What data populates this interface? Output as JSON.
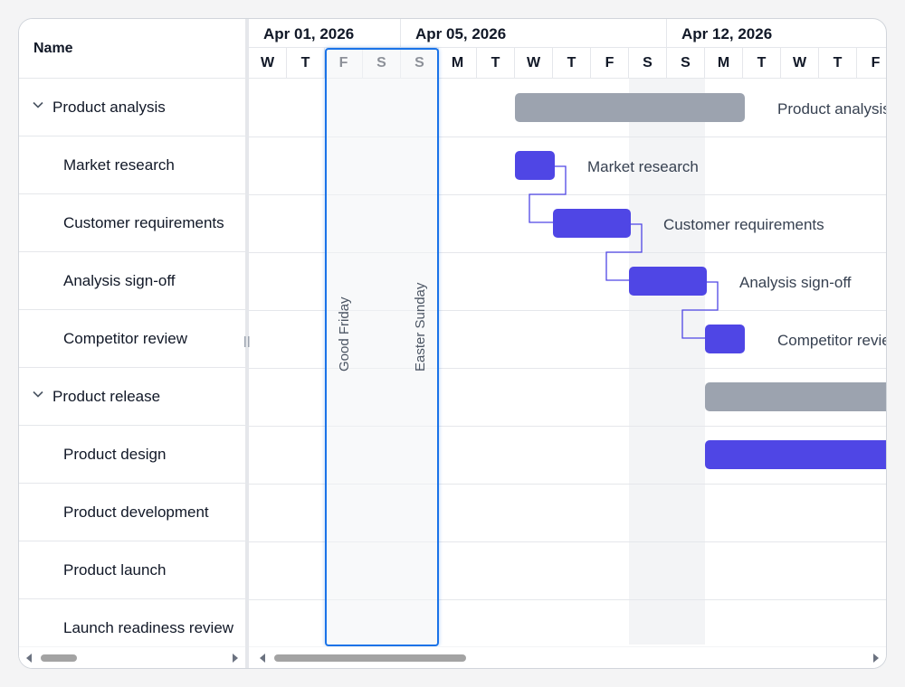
{
  "grid": {
    "name_header": "Name",
    "rows": [
      {
        "label": "Product analysis",
        "type": "parent"
      },
      {
        "label": "Market research",
        "type": "child"
      },
      {
        "label": "Customer requirements",
        "type": "child"
      },
      {
        "label": "Analysis sign-off",
        "type": "child"
      },
      {
        "label": "Competitor review",
        "type": "child"
      },
      {
        "label": "Product release",
        "type": "parent"
      },
      {
        "label": "Product design",
        "type": "child"
      },
      {
        "label": "Product development",
        "type": "child"
      },
      {
        "label": "Product launch",
        "type": "child"
      },
      {
        "label": "Launch readiness review",
        "type": "child"
      }
    ]
  },
  "timeline": {
    "weeks": [
      "Apr 01, 2026",
      "Apr 05, 2026",
      "Apr 12, 2026"
    ],
    "days": [
      "W",
      "T",
      "F",
      "S",
      "S",
      "M",
      "T",
      "W",
      "T",
      "F",
      "S",
      "S",
      "M",
      "T",
      "W",
      "T",
      "F"
    ],
    "holidays": [
      "Good Friday",
      "Easter Sunday"
    ]
  },
  "bars": [
    {
      "row": 0,
      "label": "Product analysis",
      "kind": "summary"
    },
    {
      "row": 1,
      "label": "Market research",
      "kind": "task"
    },
    {
      "row": 2,
      "label": "Customer requirements",
      "kind": "task"
    },
    {
      "row": 3,
      "label": "Analysis sign-off",
      "kind": "task"
    },
    {
      "row": 4,
      "label": "Competitor review",
      "kind": "task"
    },
    {
      "row": 5,
      "label": "",
      "kind": "summary"
    },
    {
      "row": 6,
      "label": "",
      "kind": "task"
    }
  ],
  "colors": {
    "task": "#4f46e5",
    "summary": "#9ca3af",
    "holiday_border": "#1a73e8",
    "weekend": "#f3f4f6"
  }
}
